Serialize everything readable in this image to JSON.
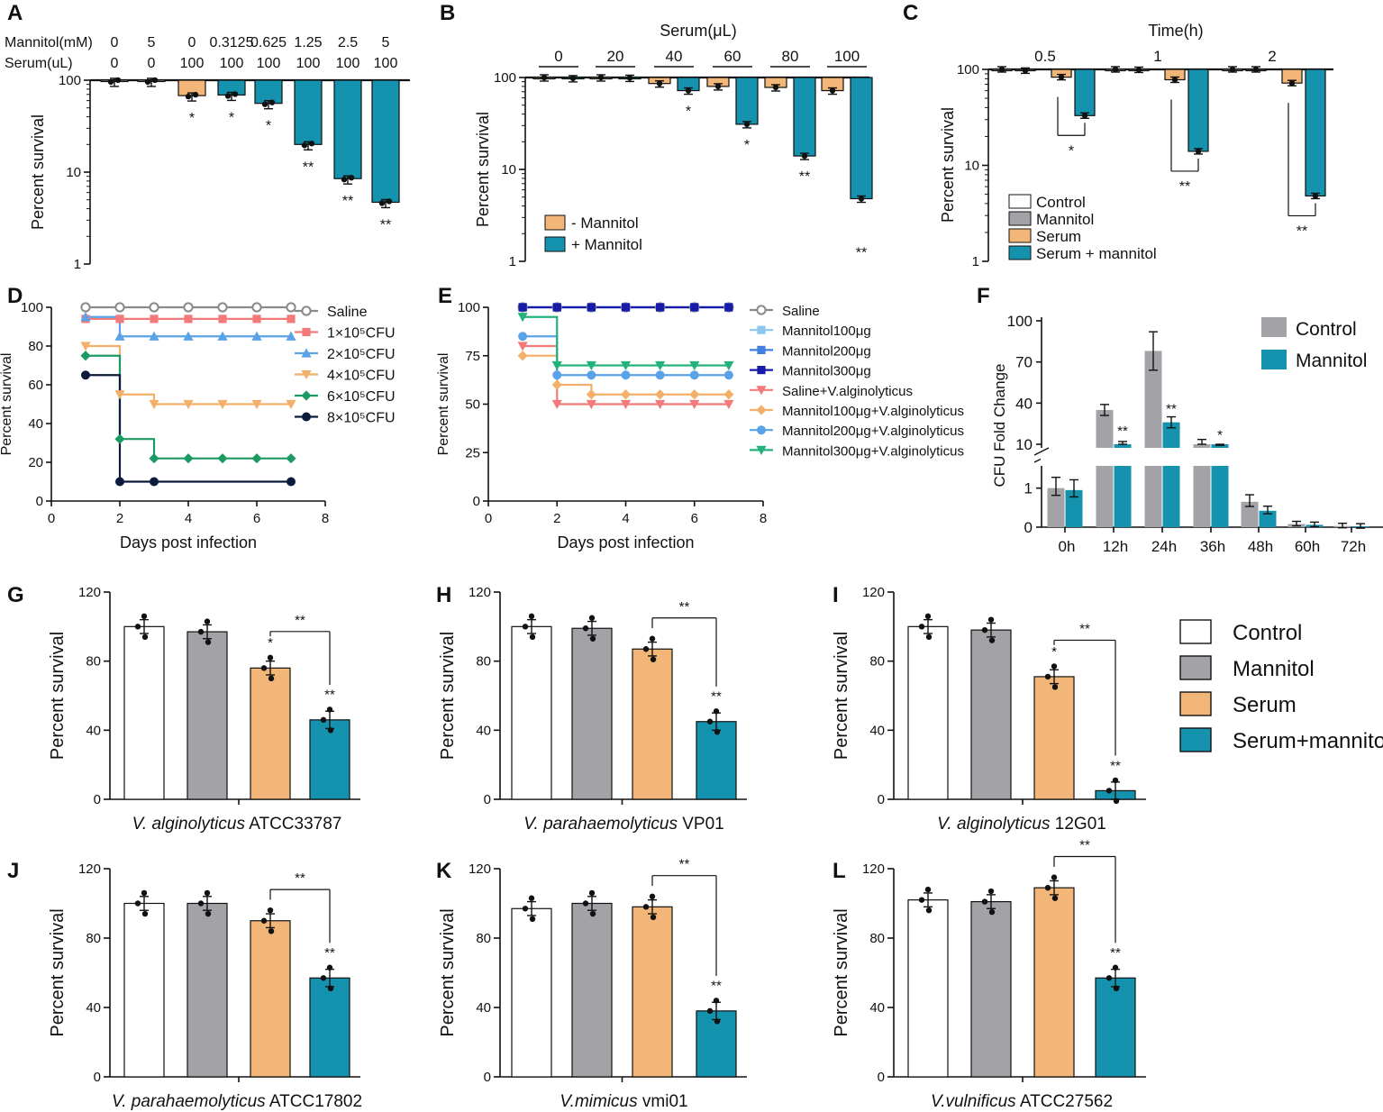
{
  "figure": {
    "panel_labels": [
      "A",
      "B",
      "C",
      "D",
      "E",
      "F",
      "G",
      "H",
      "I",
      "J",
      "K",
      "L"
    ],
    "colors": {
      "control": "#ffffff",
      "mannitol": "#a3a3a7",
      "serum": "#f2b679",
      "serum_mannitol": "#1592ae",
      "axis": "#111111"
    },
    "yticks_log": [
      "100",
      "10",
      "1"
    ],
    "survival_label": "Percent survival",
    "legend_4": [
      "Control",
      "Mannitol",
      "Serum",
      "Serum+mannitol"
    ]
  },
  "chart_data": [
    {
      "id": "A",
      "type": "bar",
      "scale": "log",
      "ylabel": "Percent survival",
      "ylim": [
        1,
        100
      ],
      "row_labels": [
        "Mannitol(mM)",
        "Serum(uL)"
      ],
      "mannitol": [
        "0",
        "5",
        "0",
        "0.3125",
        "0.625",
        "1.25",
        "2.5",
        "5"
      ],
      "serum": [
        "0",
        "0",
        "100",
        "100",
        "100",
        "100",
        "100",
        "100"
      ],
      "values": [
        98,
        98,
        68,
        69,
        56,
        20,
        8.5,
        4.7
      ],
      "colors": [
        "white",
        "white",
        "serum",
        "serum_mannitol",
        "serum_mannitol",
        "serum_mannitol",
        "serum_mannitol",
        "serum_mannitol"
      ],
      "sig": [
        "",
        "",
        "*",
        "*",
        "*",
        "**",
        "**",
        "**"
      ]
    },
    {
      "id": "B",
      "type": "bar",
      "scale": "log",
      "ylabel": "Percent survival",
      "ylim": [
        1,
        100
      ],
      "title": "Serum(μL)",
      "categories": [
        "0",
        "20",
        "40",
        "60",
        "80",
        "100"
      ],
      "series": [
        {
          "name": "- Mannitol",
          "values": [
            100,
            100,
            86,
            80,
            78,
            72
          ]
        },
        {
          "name": "+ Mannitol",
          "values": [
            98,
            99,
            72,
            31,
            14,
            4.8
          ]
        }
      ],
      "sig": [
        "",
        "",
        "*",
        "*",
        "**",
        "**"
      ],
      "legend": [
        "- Mannitol",
        "+ Mannitol"
      ]
    },
    {
      "id": "C",
      "type": "bar",
      "scale": "log",
      "ylabel": "Percent survival",
      "ylim": [
        1,
        100
      ],
      "title": "Time(h)",
      "categories": [
        "0.5",
        "1",
        "2"
      ],
      "series": [
        {
          "name": "Control",
          "values": [
            100,
            100,
            100
          ]
        },
        {
          "name": "Mannitol",
          "values": [
            97,
            99,
            100
          ]
        },
        {
          "name": "Serum",
          "values": [
            83,
            78,
            72
          ]
        },
        {
          "name": "Serum + mannitol",
          "values": [
            33,
            14,
            4.8
          ]
        }
      ],
      "sig": [
        "*",
        "**",
        "**"
      ],
      "legend": [
        "Control",
        "Mannitol",
        "Serum",
        "Serum + mannitol"
      ]
    },
    {
      "id": "D",
      "type": "line",
      "xlabel": "Days post infection",
      "ylabel": "Percent survival",
      "xlim": [
        0,
        8
      ],
      "ylim": [
        0,
        100
      ],
      "xticks": [
        "0",
        "2",
        "4",
        "6",
        "8"
      ],
      "yticks": [
        "0",
        "20",
        "40",
        "60",
        "80",
        "100"
      ],
      "legend": [
        "Saline",
        "1×10⁵CFU",
        "2×10⁵CFU",
        "4×10⁵CFU",
        "6×10⁵CFU",
        "8×10⁵CFU"
      ],
      "series": [
        {
          "name": "Saline",
          "color": "#8a8a8a",
          "marker": "circle-open",
          "steps": [
            [
              1,
              100
            ],
            [
              7,
              100
            ]
          ]
        },
        {
          "name": "1×10⁵CFU",
          "color": "#f27a7a",
          "marker": "square",
          "steps": [
            [
              1,
              94
            ],
            [
              7,
              94
            ]
          ]
        },
        {
          "name": "2×10⁵CFU",
          "color": "#5aa2e8",
          "marker": "triangle-up",
          "steps": [
            [
              1,
              95
            ],
            [
              2,
              85
            ],
            [
              7,
              85
            ]
          ]
        },
        {
          "name": "4×10⁵CFU",
          "color": "#f2b06a",
          "marker": "triangle-down",
          "steps": [
            [
              1,
              80
            ],
            [
              2,
              55
            ],
            [
              3,
              50
            ],
            [
              7,
              50
            ]
          ]
        },
        {
          "name": "6×10⁵CFU",
          "color": "#1c9a63",
          "marker": "diamond",
          "steps": [
            [
              1,
              75
            ],
            [
              2,
              32
            ],
            [
              3,
              22
            ],
            [
              7,
              22
            ]
          ]
        },
        {
          "name": "8×10⁵CFU",
          "color": "#0c1a3c",
          "marker": "circle",
          "steps": [
            [
              1,
              65
            ],
            [
              2,
              10
            ],
            [
              7,
              10
            ]
          ]
        }
      ]
    },
    {
      "id": "E",
      "type": "line",
      "xlabel": "Days post infection",
      "ylabel": "Percent survival",
      "xlim": [
        0,
        8
      ],
      "ylim": [
        0,
        100
      ],
      "xticks": [
        "0",
        "2",
        "4",
        "6",
        "8"
      ],
      "yticks": [
        "0",
        "25",
        "50",
        "75",
        "100"
      ],
      "legend": [
        "Saline",
        "Mannitol100μg",
        "Mannitol200μg",
        "Mannitol300μg",
        "Saline+V.alginolyticus",
        "Mannitol100μg+V.alginolyticus",
        "Mannitol200μg+V.alginolyticus",
        "Mannitol300μg+V.alginolyticus"
      ],
      "series": [
        {
          "name": "Saline",
          "color": "#8a8a8a",
          "marker": "circle-open",
          "steps": [
            [
              1,
              100
            ],
            [
              7,
              100
            ]
          ]
        },
        {
          "name": "Mannitol100μg",
          "color": "#8cc6ef",
          "marker": "square",
          "steps": [
            [
              1,
              100
            ],
            [
              7,
              100
            ]
          ]
        },
        {
          "name": "Mannitol200μg",
          "color": "#3f7fe0",
          "marker": "square",
          "steps": [
            [
              1,
              100
            ],
            [
              7,
              100
            ]
          ]
        },
        {
          "name": "Mannitol300μg",
          "color": "#1a1aa8",
          "marker": "square",
          "steps": [
            [
              1,
              100
            ],
            [
              7,
              100
            ]
          ]
        },
        {
          "name": "Saline+V.alginolyticus",
          "color": "#f27a7a",
          "marker": "triangle-down",
          "steps": [
            [
              1,
              80
            ],
            [
              2,
              50
            ],
            [
              7,
              50
            ]
          ]
        },
        {
          "name": "Mannitol100μg+V.alginolyticus",
          "color": "#f2b06a",
          "marker": "diamond",
          "steps": [
            [
              1,
              75
            ],
            [
              2,
              60
            ],
            [
              3,
              55
            ],
            [
              7,
              55
            ]
          ]
        },
        {
          "name": "Mannitol200μg+V.alginolyticus",
          "color": "#5aa2e8",
          "marker": "circle",
          "steps": [
            [
              1,
              85
            ],
            [
              2,
              65
            ],
            [
              7,
              65
            ]
          ]
        },
        {
          "name": "Mannitol300μg+V.alginolyticus",
          "color": "#23b37a",
          "marker": "triangle-down",
          "steps": [
            [
              1,
              95
            ],
            [
              2,
              70
            ],
            [
              7,
              70
            ]
          ]
        }
      ]
    },
    {
      "id": "F",
      "type": "bar",
      "ylabel": "CFU Fold Change",
      "categories": [
        "0h",
        "12h",
        "24h",
        "36h",
        "48h",
        "60h",
        "72h"
      ],
      "yticks_upper": [
        "10",
        "40",
        "70",
        "100"
      ],
      "yticks_lower": [
        "0",
        "1"
      ],
      "series": [
        {
          "name": "Control",
          "values": [
            1.0,
            35,
            78,
            9.5,
            0.65,
            0.08,
            0.03
          ]
        },
        {
          "name": "Mannitol",
          "values": [
            0.95,
            10,
            26,
            7.2,
            0.42,
            0.06,
            0.02
          ]
        }
      ],
      "sig": [
        "",
        "**",
        "**",
        "*",
        "",
        "",
        ""
      ],
      "legend": [
        "Control",
        "Mannitol"
      ]
    },
    {
      "id": "G",
      "type": "bar",
      "ylabel": "Percent survival",
      "ylim": [
        0,
        120
      ],
      "yticks": [
        "0",
        "40",
        "80",
        "120"
      ],
      "xlabel_italic": "V. alginolyticus",
      "xlabel_rest": " ATCC33787",
      "values": [
        100,
        97,
        76,
        46
      ],
      "sig": [
        "",
        "",
        "*",
        "**"
      ],
      "bracket": "**"
    },
    {
      "id": "H",
      "type": "bar",
      "ylabel": "Percent survival",
      "ylim": [
        0,
        120
      ],
      "yticks": [
        "0",
        "40",
        "80",
        "120"
      ],
      "xlabel_italic": "V. parahaemolyticus",
      "xlabel_rest": " VP01",
      "values": [
        100,
        99,
        87,
        45
      ],
      "sig": [
        "",
        "",
        "",
        "**"
      ],
      "bracket": "**"
    },
    {
      "id": "I",
      "type": "bar",
      "ylabel": "Percent survival",
      "ylim": [
        0,
        120
      ],
      "yticks": [
        "0",
        "40",
        "80",
        "120"
      ],
      "xlabel_italic": "V. alginolyticus",
      "xlabel_rest": " 12G01",
      "values": [
        100,
        98,
        71,
        5
      ],
      "sig": [
        "",
        "",
        "*",
        "**"
      ],
      "bracket": "**"
    },
    {
      "id": "J",
      "type": "bar",
      "ylabel": "Percent survival",
      "ylim": [
        0,
        120
      ],
      "yticks": [
        "0",
        "40",
        "80",
        "120"
      ],
      "xlabel_italic": "V. parahaemolyticus",
      "xlabel_rest": " ATCC17802",
      "values": [
        100,
        100,
        90,
        57
      ],
      "sig": [
        "",
        "",
        "",
        "**"
      ],
      "bracket": "**"
    },
    {
      "id": "K",
      "type": "bar",
      "ylabel": "Percent survival",
      "ylim": [
        0,
        120
      ],
      "yticks": [
        "0",
        "40",
        "80",
        "120"
      ],
      "xlabel_italic": "V.mimicus",
      "xlabel_rest": " vmi01",
      "values": [
        97,
        100,
        98,
        38
      ],
      "sig": [
        "",
        "",
        "",
        "**"
      ],
      "bracket": "**"
    },
    {
      "id": "L",
      "type": "bar",
      "ylabel": "Percent survival",
      "ylim": [
        0,
        120
      ],
      "yticks": [
        "0",
        "40",
        "80",
        "120"
      ],
      "xlabel_italic": "V.vulnificus",
      "xlabel_rest": " ATCC27562",
      "values": [
        102,
        101,
        109,
        57
      ],
      "sig": [
        "",
        "",
        "",
        "**"
      ],
      "bracket": "**"
    }
  ]
}
